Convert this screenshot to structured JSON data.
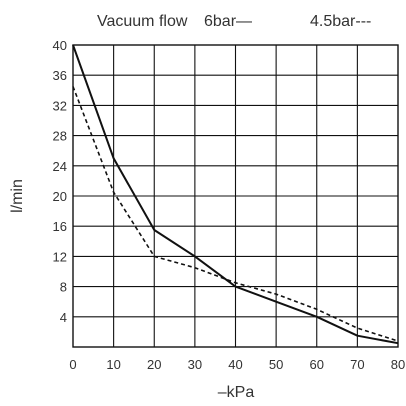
{
  "chart_data": {
    "type": "line",
    "title": "Vacuum flow",
    "xlabel": "–kPa",
    "ylabel": "l/min",
    "xlim": [
      0,
      80
    ],
    "ylim": [
      0,
      40
    ],
    "x_ticks": [
      0,
      10,
      20,
      30,
      40,
      50,
      60,
      70,
      80
    ],
    "y_ticks": [
      4,
      8,
      12,
      16,
      20,
      24,
      28,
      32,
      36,
      40
    ],
    "grid": true,
    "legend_placement": "top-right",
    "series": [
      {
        "name": "6bar",
        "legend_label": "6bar—",
        "style": "solid",
        "color": "#111111",
        "x": [
          0,
          10,
          20,
          30,
          40,
          50,
          60,
          70,
          80
        ],
        "y": [
          40,
          25,
          15.5,
          12,
          8,
          6,
          4,
          1.5,
          0.5
        ]
      },
      {
        "name": "4.5bar",
        "legend_label": "4.5bar---",
        "style": "dashed",
        "color": "#111111",
        "x": [
          0,
          10,
          20,
          30,
          40,
          50,
          60,
          70,
          80
        ],
        "y": [
          34.5,
          20.5,
          12,
          10.5,
          8.5,
          7,
          5,
          2.5,
          0.8
        ]
      }
    ]
  }
}
